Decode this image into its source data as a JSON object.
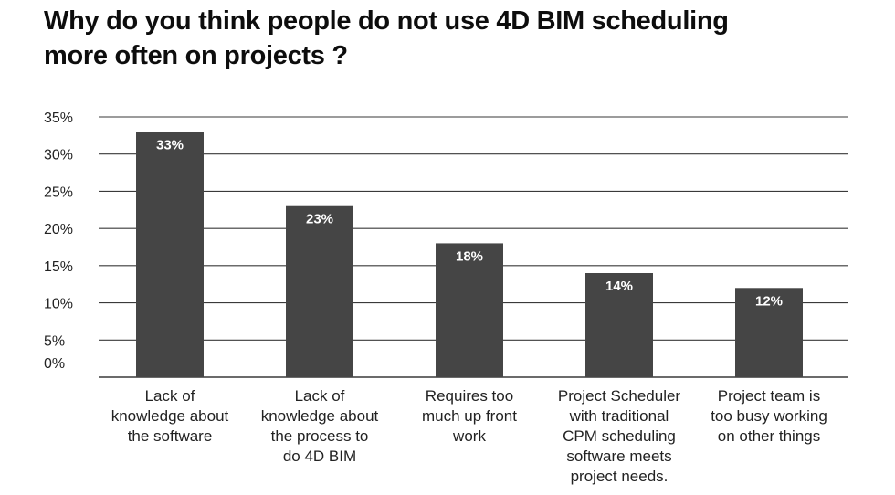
{
  "chart_data": {
    "type": "bar",
    "title_lines": [
      "Why do you think people do not use 4D BIM scheduling",
      "more often on projects ?"
    ],
    "categories": [
      "Lack of\nknowledge about\nthe software",
      "Lack of\nknowledge about\nthe process to\ndo 4D BIM",
      "Requires too\nmuch up front\nwork",
      "Project Scheduler\nwith traditional\nCPM scheduling\nsoftware meets\nproject needs.",
      "Project team is\ntoo busy working\non other things"
    ],
    "values": [
      33,
      23,
      18,
      14,
      12
    ],
    "data_labels": [
      "33%",
      "23%",
      "18%",
      "14%",
      "12%"
    ],
    "yticks": [
      {
        "value": 0,
        "label": "0%"
      },
      {
        "value": 5,
        "label": "5%"
      },
      {
        "value": 10,
        "label": "10%"
      },
      {
        "value": 15,
        "label": "15%"
      },
      {
        "value": 20,
        "label": "20%"
      },
      {
        "value": 25,
        "label": "25%"
      },
      {
        "value": 30,
        "label": "30%"
      },
      {
        "value": 35,
        "label": "35%"
      }
    ],
    "ylim": [
      0,
      35
    ],
    "grid": true,
    "bar_color": "#454545",
    "grid_color": "#3a3a3a",
    "xlabel": "",
    "ylabel": ""
  }
}
